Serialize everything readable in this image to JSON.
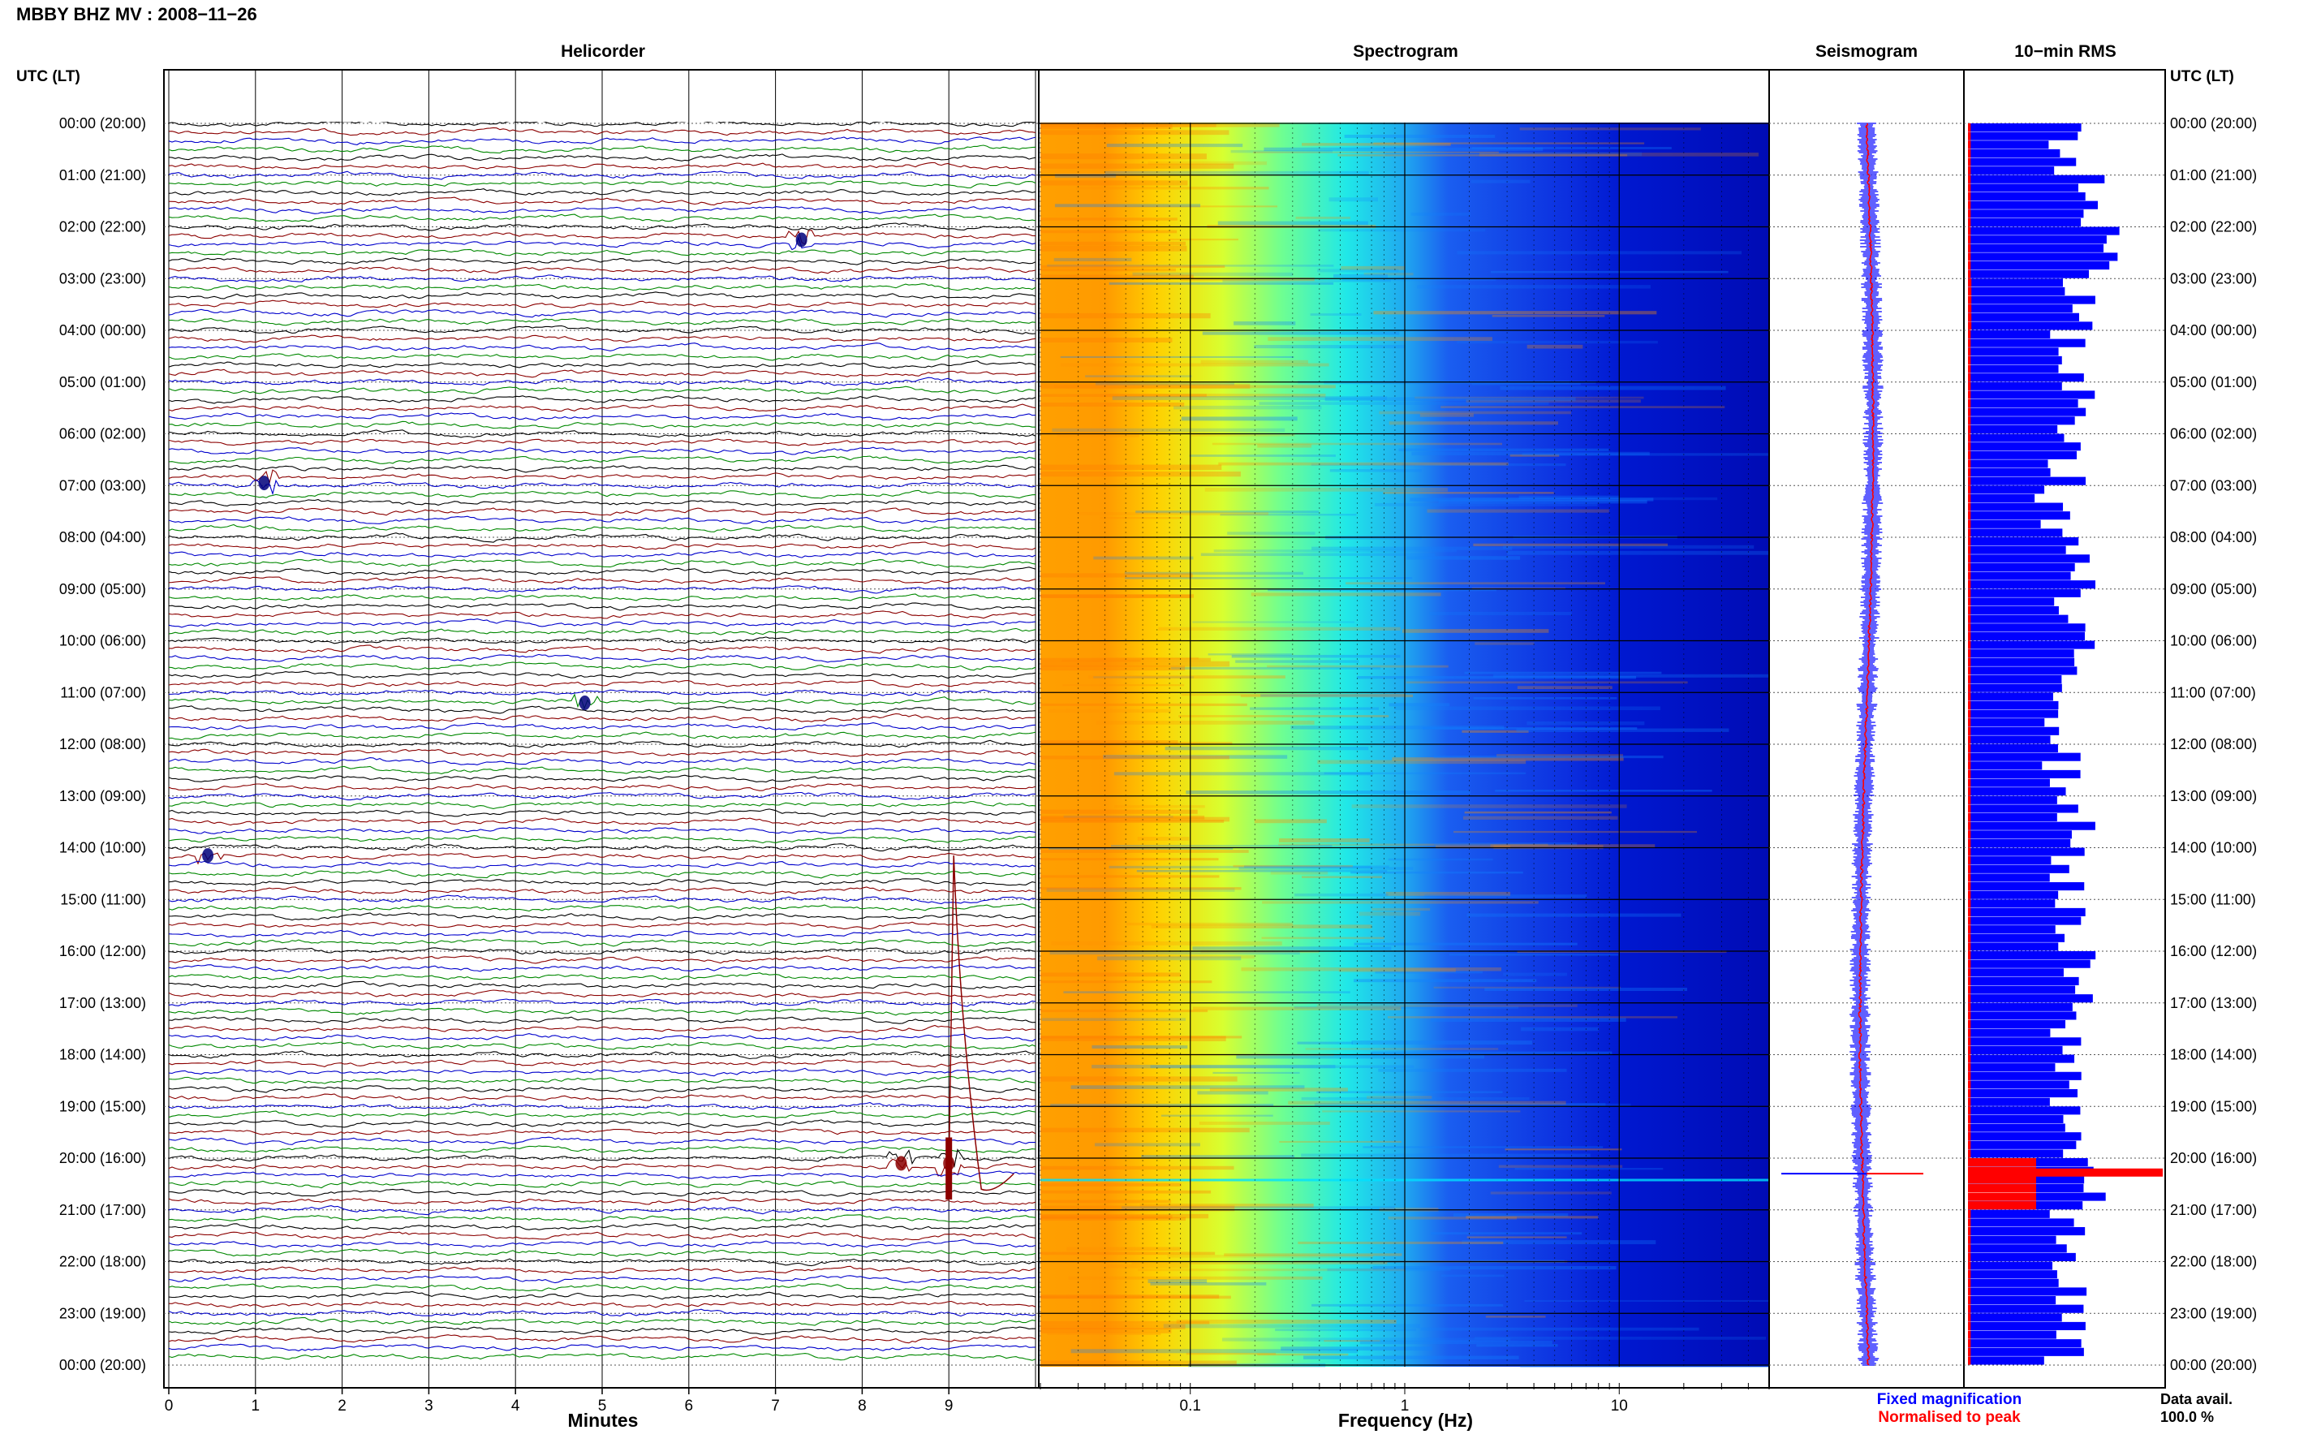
{
  "header": {
    "station_title": "MBBY BHZ MV : 2008−11−26",
    "utc_label_left": "UTC (LT)",
    "utc_label_right": "UTC (LT)"
  },
  "panels": {
    "helicorder_title": "Helicorder",
    "spectrogram_title": "Spectrogram",
    "seismogram_title": "Seismogram",
    "rms_title": "10−min RMS"
  },
  "time_labels": [
    "00:00 (20:00)",
    "01:00 (21:00)",
    "02:00 (22:00)",
    "03:00 (23:00)",
    "04:00 (00:00)",
    "05:00 (01:00)",
    "06:00 (02:00)",
    "07:00 (03:00)",
    "08:00 (04:00)",
    "09:00 (05:00)",
    "10:00 (06:00)",
    "11:00 (07:00)",
    "12:00 (08:00)",
    "13:00 (09:00)",
    "14:00 (10:00)",
    "15:00 (11:00)",
    "16:00 (12:00)",
    "17:00 (13:00)",
    "18:00 (14:00)",
    "19:00 (15:00)",
    "20:00 (16:00)",
    "21:00 (17:00)",
    "22:00 (18:00)",
    "23:00 (19:00)",
    "00:00 (20:00)"
  ],
  "legend": {
    "fixed_magnification": "Fixed magnification",
    "normalised_to_peak": "Normalised to peak",
    "data_avail_label": "Data avail.",
    "data_avail_value": "100.0 %"
  },
  "colors": {
    "trace_cycle": [
      "#000000",
      "#8b0000",
      "#0000cc",
      "#008800"
    ],
    "rms_fixed": "#0000ff",
    "rms_normalised": "#ff0000",
    "seismogram_fixed": "#0000ff",
    "seismogram_normalised": "#ff0000",
    "legend_fixed": "#0000ff",
    "legend_normalised": "#ff0000"
  },
  "chart_data": [
    {
      "type": "line",
      "title": "Helicorder",
      "xlabel": "Minutes",
      "ylabel": "UTC (LT)",
      "x_ticks": [
        "0",
        "1",
        "2",
        "3",
        "4",
        "5",
        "6",
        "7",
        "8",
        "9"
      ],
      "xlim": [
        0,
        10
      ],
      "rows_per_hour": 6,
      "hours": 24,
      "grid": true,
      "events": [
        {
          "hour": 2.25,
          "minute": 7.3
        },
        {
          "hour": 6.95,
          "minute": 1.1
        },
        {
          "hour": 11.2,
          "minute": 4.8
        },
        {
          "hour": 14.15,
          "minute": 0.45
        },
        {
          "hour": 20.1,
          "minute": 8.45
        },
        {
          "hour": 20.1,
          "minute": 9.0
        }
      ]
    },
    {
      "type": "heatmap",
      "title": "Spectrogram",
      "xlabel": "Frequency (Hz)",
      "x_ticks": [
        "0.1",
        "1",
        "10"
      ],
      "x_scale": "log",
      "xlim": [
        0.02,
        50
      ],
      "grid": true
    },
    {
      "type": "line",
      "title": "Seismogram",
      "series": [
        {
          "name": "Fixed magnification"
        },
        {
          "name": "Normalised to peak"
        }
      ],
      "spike_hour": 20.3
    },
    {
      "type": "bar",
      "title": "10−min RMS",
      "orientation": "horizontal",
      "series": [
        {
          "name": "Fixed magnification",
          "values_by_hour": [
            0.5,
            0.65,
            0.7,
            0.55,
            0.5,
            0.55,
            0.5,
            0.45,
            0.55,
            0.5,
            0.55,
            0.5,
            0.48,
            0.55,
            0.52,
            0.5,
            0.55,
            0.5,
            0.52,
            0.55,
            0.6,
            0.5,
            0.52,
            0.5
          ]
        },
        {
          "name": "Normalised to peak",
          "values_by_hour": [
            0.04,
            0.04,
            0.04,
            0.05,
            0.04,
            0.04,
            0.04,
            0.04,
            0.04,
            0.04,
            0.04,
            0.04,
            0.04,
            0.04,
            0.04,
            0.04,
            0.04,
            0.04,
            0.04,
            0.04,
            1.0,
            0.04,
            0.04,
            0.04
          ]
        }
      ],
      "peak_hour": 20.2
    }
  ]
}
